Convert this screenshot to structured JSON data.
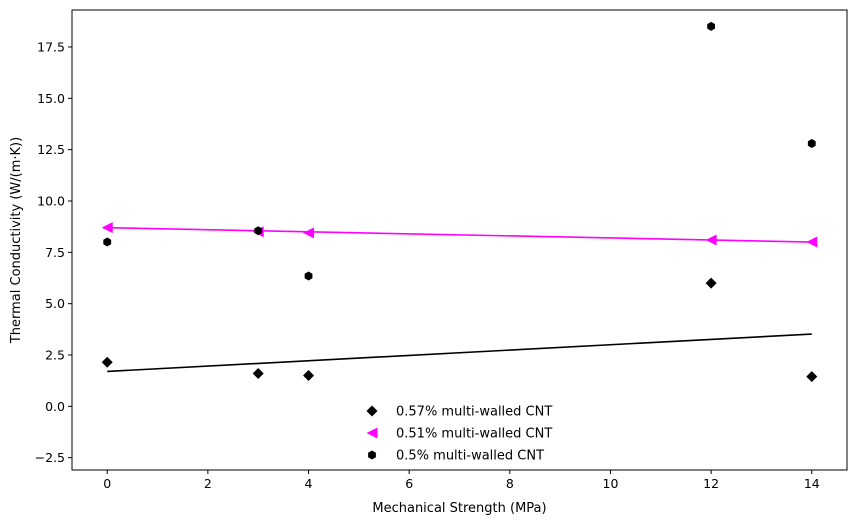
{
  "chart_data": {
    "type": "scatter",
    "xlabel": "Mechanical Strength (MPa)",
    "ylabel": "Thermal Conductivity (W/(m·K))",
    "xlim": [
      -0.7,
      14.7
    ],
    "ylim": [
      -3.1,
      19.3
    ],
    "xticks": [
      0,
      2,
      4,
      6,
      8,
      10,
      12,
      14
    ],
    "xtick_labels": [
      "0",
      "2",
      "4",
      "6",
      "8",
      "10",
      "12",
      "14"
    ],
    "yticks": [
      -2.5,
      0.0,
      2.5,
      5.0,
      7.5,
      10.0,
      12.5,
      15.0,
      17.5
    ],
    "ytick_labels": [
      "−2.5",
      "0.0",
      "2.5",
      "5.0",
      "7.5",
      "10.0",
      "12.5",
      "15.0",
      "17.5"
    ],
    "grid": false,
    "legend_position": "lower-center",
    "series": [
      {
        "name": "0.57% multi-walled CNT",
        "marker": "diamond",
        "color": "#000000",
        "x": [
          0,
          3,
          4,
          12,
          14
        ],
        "y": [
          2.15,
          1.6,
          1.5,
          6.0,
          1.45
        ],
        "fit_line": {
          "x": [
            0,
            14
          ],
          "y": [
            1.7,
            3.52
          ]
        }
      },
      {
        "name": "0.51% multi-walled CNT",
        "marker": "triangle-left",
        "color": "#ff00ff",
        "x": [
          0,
          3,
          4,
          12,
          14
        ],
        "y": [
          8.7,
          8.5,
          8.45,
          8.1,
          8.0
        ],
        "fit_line": {
          "x": [
            0,
            14
          ],
          "y": [
            8.7,
            8.0
          ]
        }
      },
      {
        "name": "0.5% multi-walled CNT",
        "marker": "hexagon",
        "color": "#000000",
        "x": [
          0,
          3,
          4,
          12,
          14
        ],
        "y": [
          8.0,
          8.55,
          6.35,
          18.5,
          12.8
        ]
      }
    ]
  }
}
